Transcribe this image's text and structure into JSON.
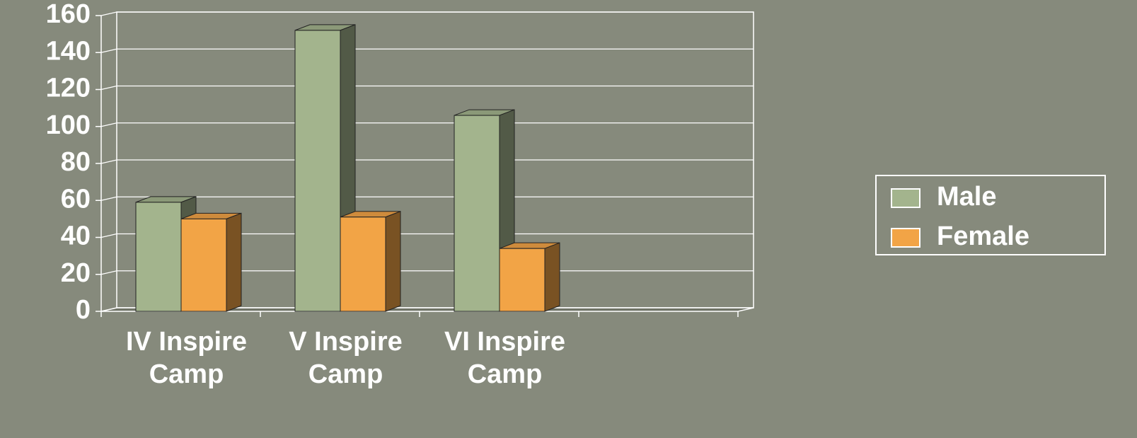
{
  "chart_data": {
    "type": "bar3d",
    "categories": [
      "IV Inspire Camp",
      "V Inspire Camp",
      "VI Inspire Camp",
      null
    ],
    "series": [
      {
        "name": "Male",
        "color": "#a3b48d",
        "values": [
          59,
          152,
          106,
          null
        ]
      },
      {
        "name": "Female",
        "color": "#f2a446",
        "values": [
          50,
          51,
          34,
          null
        ]
      }
    ],
    "ylim": [
      0,
      160
    ],
    "yticks": [
      0,
      20,
      40,
      60,
      80,
      100,
      120,
      140,
      160
    ],
    "grid": true,
    "legend": "right"
  }
}
